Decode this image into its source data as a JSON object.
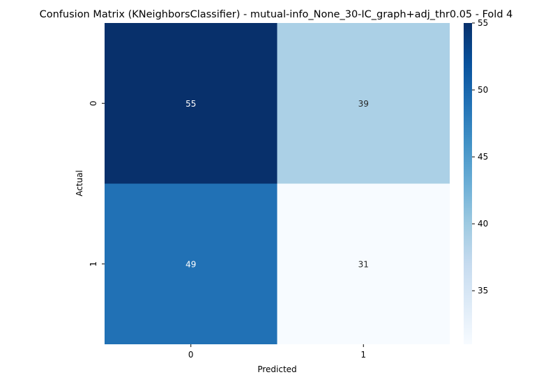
{
  "chart_data": {
    "type": "heatmap",
    "title": "Confusion Matrix (KNeighborsClassifier) - mutual-info_None_30-IC_graph+adj_thr0.05 - Fold 4",
    "xlabel": "Predicted",
    "ylabel": "Actual",
    "x_categories": [
      "0",
      "1"
    ],
    "y_categories": [
      "0",
      "1"
    ],
    "values": [
      [
        55,
        39
      ],
      [
        49,
        31
      ]
    ],
    "colorbar": {
      "min": 31,
      "max": 55,
      "ticks": [
        35,
        40,
        45,
        50,
        55
      ]
    },
    "colormap": "Blues"
  }
}
